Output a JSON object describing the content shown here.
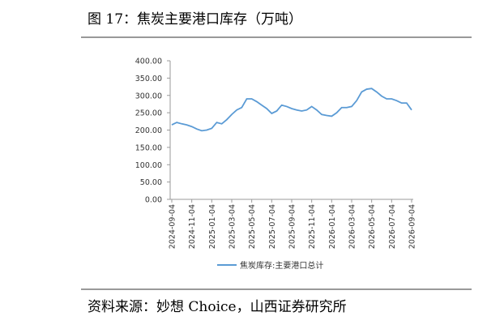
{
  "header": {
    "title": "图 17：焦炭主要港口库存（万吨）"
  },
  "chart_data": {
    "type": "line",
    "categories": [
      "2024-09-04",
      null,
      null,
      null,
      "2024-11-04",
      null,
      null,
      null,
      "2025-01-04",
      null,
      null,
      null,
      "2025-03-04",
      null,
      null,
      null,
      "2025-05-04",
      null,
      null,
      null,
      "2025-07-04",
      null,
      null,
      null,
      "2025-09-04",
      null,
      null,
      null,
      "2025-11-04",
      null,
      null,
      null,
      "2026-01-04",
      null,
      null,
      null,
      "2026-03-04",
      null,
      null,
      null,
      "2026-05-04",
      null,
      null,
      null,
      "2026-07-04",
      null,
      null,
      null,
      "2026-09-04"
    ],
    "series": [
      {
        "name": "焦炭库存:主要港口总计",
        "color": "#5b9bd5",
        "values": [
          215,
          222,
          218,
          215,
          210,
          203,
          198,
          200,
          205,
          222,
          218,
          230,
          245,
          258,
          265,
          290,
          290,
          282,
          272,
          262,
          248,
          255,
          272,
          268,
          262,
          258,
          255,
          258,
          268,
          258,
          245,
          242,
          240,
          250,
          265,
          265,
          268,
          285,
          310,
          318,
          320,
          310,
          298,
          290,
          290,
          285,
          278,
          278,
          258
        ]
      }
    ],
    "ylim": [
      0,
      400
    ],
    "yticks": [
      {
        "value": 0,
        "label": "0.00"
      },
      {
        "value": 50,
        "label": "50.00"
      },
      {
        "value": 100,
        "label": "100.00"
      },
      {
        "value": 150,
        "label": "150.00"
      },
      {
        "value": 200,
        "label": "200.00"
      },
      {
        "value": 250,
        "label": "250.00"
      },
      {
        "value": 300,
        "label": "300.00"
      },
      {
        "value": 350,
        "label": "350.00"
      },
      {
        "value": 400,
        "label": "400.00"
      }
    ],
    "legend": "bottom"
  },
  "footer": {
    "source": "资料来源：妙想 Choice，山西证券研究所"
  }
}
